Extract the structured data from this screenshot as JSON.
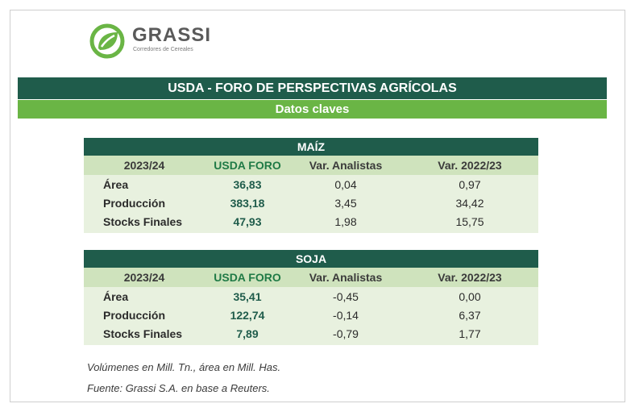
{
  "brand": {
    "name": "GRASSI",
    "tagline": "Corredores de Cereales",
    "colors": {
      "dark_green": "#1f5c4b",
      "light_green": "#6ab545",
      "header_row": "#cfe3bd",
      "body_row": "#e8f1df"
    },
    "logo_icon": "leaf-logo-icon"
  },
  "header": {
    "title": "USDA - FORO DE PERSPECTIVAS AGRÍCOLAS",
    "subtitle": "Datos claves"
  },
  "tables": [
    {
      "title": "MAÍZ",
      "columns": [
        "2023/24",
        "USDA FORO",
        "Var. Analistas",
        "Var. 2022/23"
      ],
      "rows": [
        [
          "Área",
          "36,83",
          "0,04",
          "0,97"
        ],
        [
          "Producción",
          "383,18",
          "3,45",
          "34,42"
        ],
        [
          "Stocks Finales",
          "47,93",
          "1,98",
          "15,75"
        ]
      ]
    },
    {
      "title": "SOJA",
      "columns": [
        "2023/24",
        "USDA FORO",
        "Var. Analistas",
        "Var. 2022/23"
      ],
      "rows": [
        [
          "Área",
          "35,41",
          "-0,45",
          "0,00"
        ],
        [
          "Producción",
          "122,74",
          "-0,14",
          "6,37"
        ],
        [
          "Stocks Finales",
          "7,89",
          "-0,79",
          "1,77"
        ]
      ]
    }
  ],
  "notes": {
    "units": "Volúmenes en Mill. Tn., área en Mill. Has.",
    "source": "Fuente: Grassi S.A. en base a Reuters."
  }
}
